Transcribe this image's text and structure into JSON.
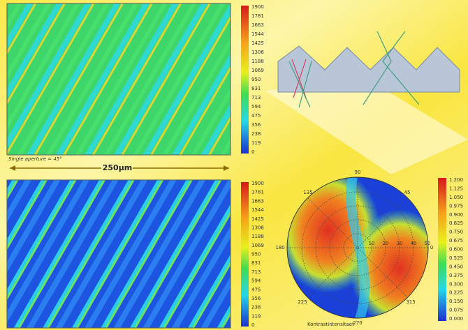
{
  "top_map": {
    "scale": [
      "1900",
      "1781",
      "1663",
      "1544",
      "1425",
      "1306",
      "1188",
      "1069",
      "950",
      "831",
      "713",
      "594",
      "475",
      "356",
      "238",
      "119",
      "0"
    ],
    "caption": "Single aperture = 45°"
  },
  "scale_bar": "250µm",
  "bottom_map": {
    "scale": [
      "1900",
      "1781",
      "1663",
      "1544",
      "1425",
      "1306",
      "1188",
      "1069",
      "950",
      "831",
      "713",
      "594",
      "475",
      "356",
      "238",
      "119",
      "0"
    ]
  },
  "polar_plot": {
    "angles": [
      "90",
      "45",
      "135",
      "180",
      "0",
      "225",
      "315",
      "270"
    ],
    "rings": [
      "10",
      "20",
      "30",
      "40",
      "50"
    ],
    "caption": "Kontrastintensitaet",
    "scale": [
      "1.200",
      "1.125",
      "1.050",
      "0.975",
      "0.900",
      "0.825",
      "0.750",
      "0.675",
      "0.600",
      "0.525",
      "0.450",
      "0.375",
      "0.300",
      "0.225",
      "0.150",
      "0.075",
      "0.000"
    ]
  }
}
